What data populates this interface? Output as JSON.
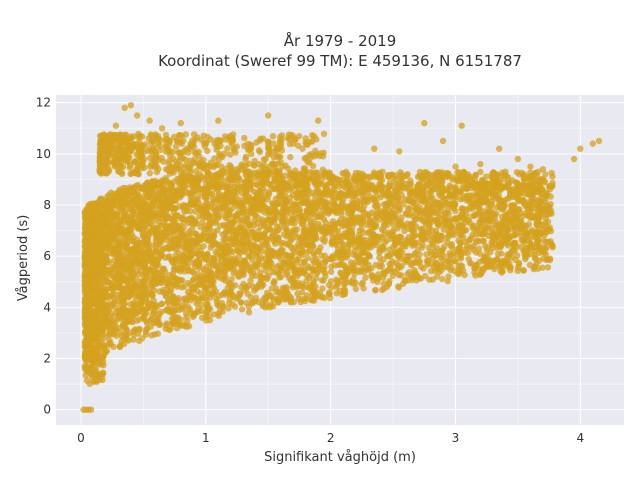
{
  "chart_data": {
    "type": "scatter",
    "title": "År 1979 - 2019",
    "subtitle": "Koordinat (Sweref 99 TM): E 459136, N 6151787",
    "xlabel": "Signifikant våghöjd (m)",
    "ylabel": "Vågperiod (s)",
    "xlim": [
      -0.2,
      4.35
    ],
    "ylim": [
      -0.6,
      12.3
    ],
    "xticks": [
      0,
      1,
      2,
      3,
      4
    ],
    "yticks": [
      0,
      2,
      4,
      6,
      8,
      10,
      12
    ],
    "grid": true,
    "legend": "none",
    "marker_color": "#d4a21f",
    "background_color": "#e9e9f1",
    "points": [
      [
        0.02,
        0.0
      ],
      [
        0.04,
        0.0
      ],
      [
        0.06,
        0.0
      ],
      [
        0.08,
        0.0
      ],
      [
        0.05,
        1.5
      ],
      [
        0.1,
        1.1
      ],
      [
        0.12,
        1.3
      ],
      [
        0.08,
        2.2
      ],
      [
        0.06,
        3.4
      ],
      [
        0.07,
        5.9
      ],
      [
        0.1,
        7.3
      ],
      [
        0.15,
        9.4
      ],
      [
        0.2,
        10.5
      ],
      [
        0.28,
        11.1
      ],
      [
        0.35,
        11.8
      ],
      [
        0.4,
        11.9
      ],
      [
        0.45,
        11.5
      ],
      [
        0.55,
        11.3
      ],
      [
        0.65,
        11.0
      ],
      [
        0.8,
        11.2
      ],
      [
        1.1,
        11.3
      ],
      [
        1.5,
        11.5
      ],
      [
        0.3,
        10.2
      ],
      [
        0.5,
        10.3
      ],
      [
        0.7,
        10.1
      ],
      [
        0.9,
        10.4
      ],
      [
        1.2,
        10.6
      ],
      [
        1.5,
        10.2
      ],
      [
        1.7,
        10.4
      ],
      [
        1.8,
        10.6
      ],
      [
        1.9,
        11.3
      ],
      [
        2.35,
        10.2
      ],
      [
        2.55,
        10.1
      ],
      [
        2.75,
        11.2
      ],
      [
        2.9,
        10.5
      ],
      [
        3.0,
        9.5
      ],
      [
        3.05,
        11.1
      ],
      [
        3.2,
        9.6
      ],
      [
        3.35,
        10.2
      ],
      [
        3.5,
        9.8
      ],
      [
        3.6,
        9.5
      ],
      [
        3.7,
        9.4
      ],
      [
        3.95,
        9.8
      ],
      [
        4.0,
        10.2
      ],
      [
        4.1,
        10.4
      ],
      [
        4.15,
        10.5
      ],
      [
        0.3,
        3.2
      ],
      [
        0.5,
        3.6
      ],
      [
        0.7,
        4.2
      ],
      [
        0.9,
        4.8
      ],
      [
        1.0,
        5.1
      ],
      [
        1.2,
        5.6
      ],
      [
        1.5,
        6.2
      ],
      [
        1.8,
        6.8
      ],
      [
        2.0,
        7.1
      ],
      [
        2.2,
        7.3
      ],
      [
        2.5,
        7.7
      ],
      [
        2.8,
        8.1
      ],
      [
        3.0,
        8.3
      ],
      [
        3.3,
        8.6
      ],
      [
        3.5,
        8.8
      ],
      [
        3.7,
        9.0
      ],
      [
        0.2,
        6.0
      ],
      [
        0.3,
        7.0
      ],
      [
        0.4,
        7.5
      ],
      [
        0.5,
        7.9
      ],
      [
        0.6,
        8.2
      ],
      [
        0.8,
        8.5
      ],
      [
        1.0,
        8.6
      ],
      [
        1.3,
        8.7
      ],
      [
        1.6,
        8.8
      ],
      [
        2.0,
        8.9
      ],
      [
        2.4,
        9.0
      ],
      [
        2.7,
        9.1
      ],
      [
        3.1,
        9.2
      ],
      [
        3.4,
        9.3
      ],
      [
        0.25,
        4.5
      ],
      [
        0.35,
        5.5
      ],
      [
        0.45,
        6.2
      ],
      [
        0.6,
        6.6
      ],
      [
        0.75,
        7.0
      ],
      [
        0.9,
        7.3
      ],
      [
        1.1,
        7.5
      ],
      [
        1.3,
        7.8
      ],
      [
        1.55,
        8.0
      ],
      [
        1.8,
        8.1
      ],
      [
        2.1,
        8.2
      ],
      [
        2.4,
        8.3
      ],
      [
        2.7,
        8.5
      ],
      [
        3.0,
        8.7
      ],
      [
        3.3,
        8.9
      ],
      [
        3.6,
        9.1
      ]
    ]
  }
}
